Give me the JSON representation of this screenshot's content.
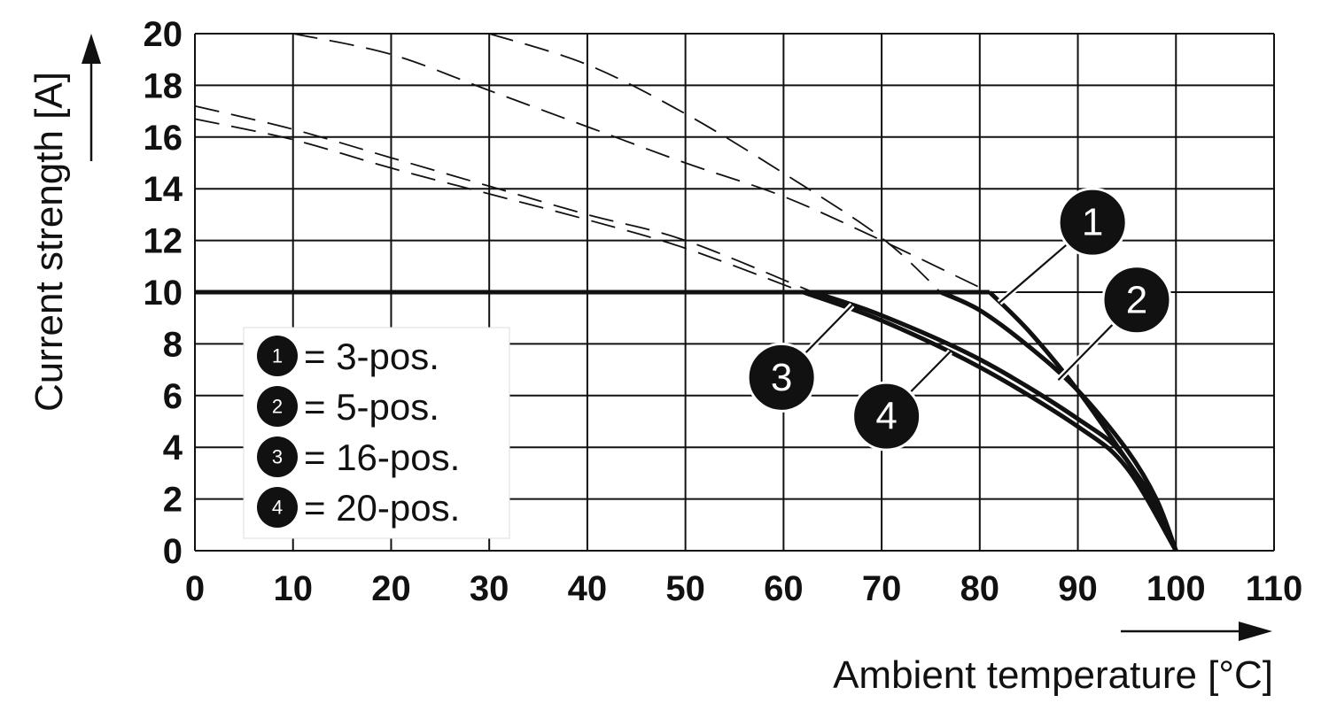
{
  "chart_data": {
    "type": "line",
    "xlabel": "Ambient temperature [°C]",
    "ylabel": "Current strength [A]",
    "xlim": [
      0,
      110
    ],
    "ylim": [
      0,
      20
    ],
    "x_ticks": [
      "0",
      "10",
      "20",
      "30",
      "40",
      "50",
      "60",
      "70",
      "80",
      "90",
      "100",
      "110"
    ],
    "y_ticks": [
      "0",
      "2",
      "4",
      "6",
      "8",
      "10",
      "12",
      "14",
      "16",
      "18",
      "20"
    ],
    "grid": true,
    "legend_position": "bottom-left",
    "legend": [
      {
        "marker": "1",
        "label": "= 3-pos."
      },
      {
        "marker": "2",
        "label": "= 5-pos."
      },
      {
        "marker": "3",
        "label": "= 16-pos."
      },
      {
        "marker": "4",
        "label": "= 20-pos."
      }
    ],
    "series": [
      {
        "marker": "1",
        "x": [
          0,
          81,
          85,
          90,
          95,
          98,
          100
        ],
        "y": [
          10,
          10,
          8.5,
          6.2,
          3.5,
          1.8,
          0
        ],
        "dashed_x": [
          10,
          20,
          30,
          40,
          50,
          60,
          70,
          81
        ],
        "dashed_y": [
          20,
          19.2,
          17.8,
          16.4,
          15.0,
          13.7,
          12.0,
          10
        ]
      },
      {
        "marker": "2",
        "x": [
          0,
          76,
          80,
          85,
          90,
          95,
          98,
          100
        ],
        "y": [
          10,
          10,
          9.3,
          7.9,
          6.2,
          3.9,
          2.0,
          0
        ],
        "dashed_x": [
          30,
          40,
          50,
          60,
          70,
          76
        ],
        "dashed_y": [
          20,
          18.8,
          16.9,
          14.6,
          12.1,
          10
        ]
      },
      {
        "marker": "3",
        "x": [
          0,
          63,
          70,
          80,
          90,
          95,
          100
        ],
        "y": [
          10,
          10,
          9.1,
          7.4,
          5.1,
          3.5,
          0
        ],
        "dashed_x": [
          0,
          10,
          20,
          30,
          40,
          50,
          63
        ],
        "dashed_y": [
          17.2,
          16.3,
          15.2,
          14.1,
          13.0,
          12.0,
          10
        ]
      },
      {
        "marker": "4",
        "x": [
          0,
          62,
          70,
          80,
          90,
          95,
          100
        ],
        "y": [
          10,
          10,
          8.9,
          7.1,
          4.8,
          3.2,
          0
        ],
        "dashed_x": [
          0,
          10,
          20,
          30,
          40,
          50,
          62
        ],
        "dashed_y": [
          16.7,
          15.9,
          14.8,
          13.8,
          12.8,
          11.7,
          10
        ]
      }
    ],
    "callouts": [
      {
        "marker": "1",
        "at_x": 82,
        "at_y": 9.6,
        "badge_x": 91.5,
        "badge_y": 12.7
      },
      {
        "marker": "2",
        "at_x": 88,
        "at_y": 6.6,
        "badge_x": 96.0,
        "badge_y": 9.7
      },
      {
        "marker": "3",
        "at_x": 67,
        "at_y": 9.5,
        "badge_x": 59.8,
        "badge_y": 6.7
      },
      {
        "marker": "4",
        "at_x": 77,
        "at_y": 7.7,
        "badge_x": 70.5,
        "badge_y": 5.2
      }
    ]
  }
}
